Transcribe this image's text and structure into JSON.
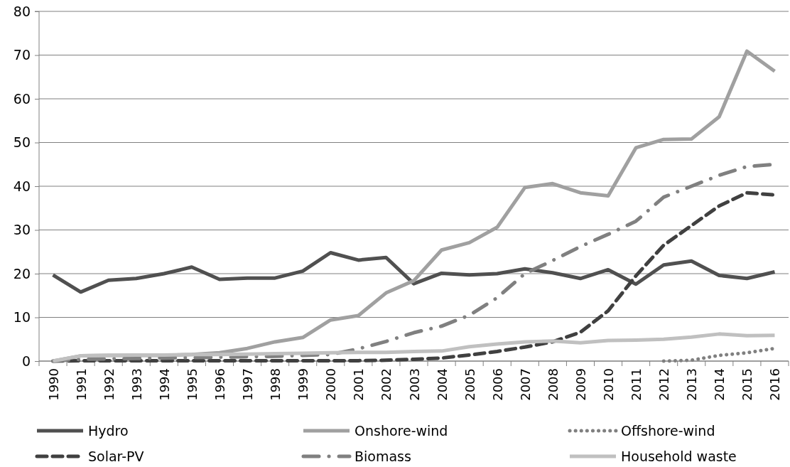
{
  "chart_data": {
    "type": "line",
    "categories": [
      "1990",
      "1991",
      "1992",
      "1993",
      "1994",
      "1995",
      "1996",
      "1997",
      "1998",
      "1999",
      "2000",
      "2001",
      "2002",
      "2003",
      "2004",
      "2005",
      "2006",
      "2007",
      "2008",
      "2009",
      "2010",
      "2011",
      "2012",
      "2013",
      "2014",
      "2015",
      "2016"
    ],
    "ylim": [
      0,
      80
    ],
    "yticks": [
      0,
      10,
      20,
      30,
      40,
      50,
      60,
      70,
      80
    ],
    "grid": "y",
    "legend": "bottom",
    "series": [
      {
        "name": "Hydro",
        "color": "#505050",
        "line_style": "solid",
        "values": [
          19.7,
          15.8,
          18.5,
          18.9,
          20,
          21.5,
          18.7,
          19,
          19,
          20.6,
          24.8,
          23.1,
          23.7,
          17.7,
          20.1,
          19.7,
          20,
          21.1,
          20.2,
          18.9,
          20.9,
          17.6,
          22,
          22.9,
          19.6,
          18.9,
          20.4
        ]
      },
      {
        "name": "Onshore-wind",
        "color": "#a0a0a0",
        "line_style": "solid",
        "values": [
          0,
          1.2,
          1.3,
          1.3,
          1.3,
          1.5,
          1.9,
          2.9,
          4.4,
          5.4,
          9.4,
          10.4,
          15.6,
          18.4,
          25.4,
          27.1,
          30.6,
          39.7,
          40.6,
          38.5,
          37.8,
          48.8,
          50.7,
          50.8,
          55.9,
          70.9,
          66.3
        ]
      },
      {
        "name": "Offshore-wind",
        "color": "#808080",
        "line_style": "dotted",
        "values": [
          null,
          null,
          null,
          null,
          null,
          null,
          null,
          null,
          null,
          null,
          null,
          null,
          null,
          null,
          null,
          null,
          null,
          null,
          null,
          null,
          null,
          null,
          0,
          0.2,
          1.3,
          1.9,
          2.9
        ]
      },
      {
        "name": "Solar-PV",
        "color": "#404040",
        "line_style": "dashed",
        "values": [
          0,
          0.1,
          0.1,
          0.1,
          0.1,
          0.1,
          0.1,
          0.1,
          0.1,
          0.1,
          0.1,
          0.1,
          0.2,
          0.4,
          0.7,
          1.4,
          2.2,
          3.2,
          4.4,
          6.6,
          11.5,
          19.5,
          26.5,
          31,
          35.5,
          38.5,
          38
        ]
      },
      {
        "name": "Biomass",
        "color": "#808080",
        "line_style": "dashdot",
        "values": [
          0,
          0.4,
          0.5,
          0.6,
          0.7,
          0.8,
          0.9,
          1,
          1.1,
          1.3,
          1.5,
          2.8,
          4.5,
          6.5,
          8,
          10.5,
          14.5,
          20,
          23,
          26.2,
          29,
          32,
          37.5,
          40,
          42.5,
          44.5,
          45
        ]
      },
      {
        "name": "Household waste",
        "color": "#c0c0c0",
        "line_style": "solid",
        "values": [
          0,
          1.2,
          1.3,
          1.4,
          1.4,
          1.5,
          1.5,
          1.6,
          1.7,
          1.8,
          1.9,
          2,
          2,
          2.2,
          2.3,
          3.3,
          3.9,
          4.4,
          4.6,
          4.2,
          4.7,
          4.8,
          5,
          5.5,
          6.2,
          5.8,
          5.9
        ]
      }
    ]
  }
}
